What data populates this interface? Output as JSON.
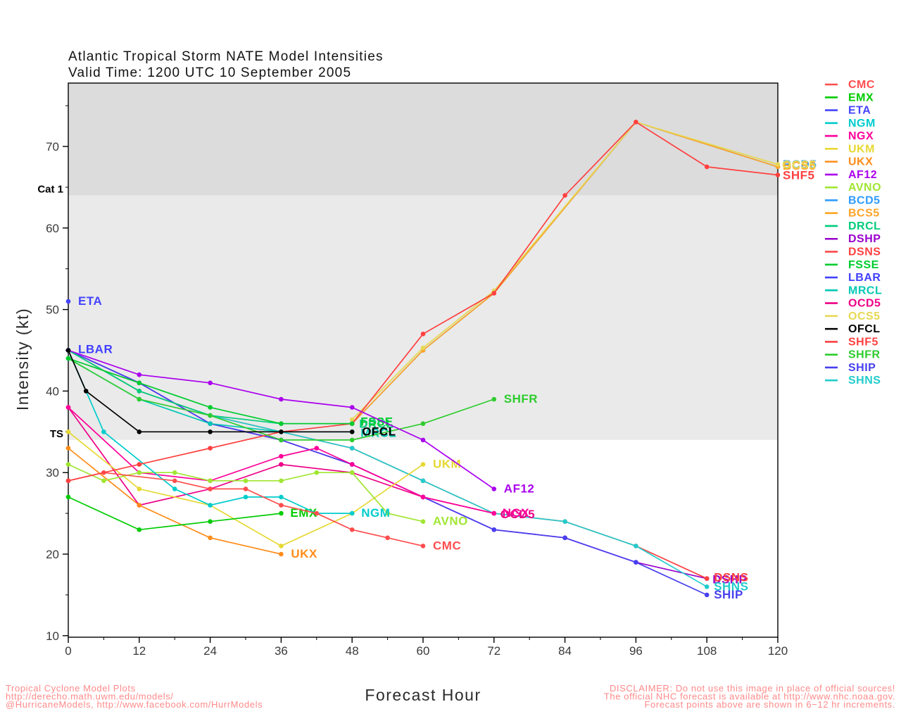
{
  "title": {
    "line1": "Atlantic Tropical Storm NATE Model Intensities",
    "line2": "Valid Time: 1200 UTC 10 September 2005"
  },
  "axes": {
    "x": {
      "label": "Forecast Hour",
      "min": 0,
      "max": 120,
      "ticks": [
        0,
        12,
        24,
        36,
        48,
        60,
        72,
        84,
        96,
        108,
        120
      ]
    },
    "y": {
      "label": "Intensity (kt)",
      "min": 10,
      "max": 78,
      "ticks": [
        10,
        20,
        30,
        40,
        50,
        60,
        70
      ]
    }
  },
  "thresholds": [
    {
      "label": "Cat 1",
      "value": 64
    },
    {
      "label": "TS",
      "value": 34
    }
  ],
  "band_colors": {
    "hurricane": "#dcdcdc",
    "tropical_storm": "#eaeaea",
    "below": "#ffffff"
  },
  "footer": {
    "left": [
      "Tropical Cyclone Model Plots",
      "http://derecho.math.uwm.edu/models/",
      "@HurricaneModels, http://www.facebook.com/HurrModels"
    ],
    "right": [
      "DISCLAIMER: Do not use this image in place of official sources!",
      "The official NHC forecast is available at http://www.nhc.noaa.gov.",
      "Forecast points above are shown in 6−12 hr increments."
    ],
    "color": "#ff8a8a"
  },
  "legend": [
    {
      "name": "CMC",
      "color": "#ff4d4d"
    },
    {
      "name": "EMX",
      "color": "#00cc00"
    },
    {
      "name": "ETA",
      "color": "#4444ff"
    },
    {
      "name": "NGM",
      "color": "#00cccc"
    },
    {
      "name": "NGX",
      "color": "#ff0099"
    },
    {
      "name": "UKM",
      "color": "#e6d832"
    },
    {
      "name": "UKX",
      "color": "#ff8c19"
    },
    {
      "name": "AF12",
      "color": "#aa00ee"
    },
    {
      "name": "AVNO",
      "color": "#a0e632"
    },
    {
      "name": "BCD5",
      "color": "#2e9bff"
    },
    {
      "name": "BCS5",
      "color": "#ffa426"
    },
    {
      "name": "DRCL",
      "color": "#00cc7a"
    },
    {
      "name": "DSHP",
      "color": "#9900cc"
    },
    {
      "name": "DSNS",
      "color": "#ff4040"
    },
    {
      "name": "FSSE",
      "color": "#00cc2e"
    },
    {
      "name": "LBAR",
      "color": "#4040ff"
    },
    {
      "name": "MRCL",
      "color": "#00c8b4"
    },
    {
      "name": "OCD5",
      "color": "#ee0088"
    },
    {
      "name": "OCS5",
      "color": "#e6d855"
    },
    {
      "name": "OFCL",
      "color": "#000000"
    },
    {
      "name": "SHF5",
      "color": "#ff4040"
    },
    {
      "name": "SHFR",
      "color": "#2ecc2e"
    },
    {
      "name": "SHIP",
      "color": "#4740ee"
    },
    {
      "name": "SHNS",
      "color": "#22cccc"
    }
  ],
  "chart_data": {
    "type": "line",
    "title": "Atlantic Tropical Storm NATE Model Intensities",
    "xlabel": "Forecast Hour",
    "ylabel": "Intensity (kt)",
    "xlim": [
      0,
      120
    ],
    "ylim": [
      10,
      78
    ],
    "grid": false,
    "legend_position": "right",
    "series": [
      {
        "name": "ETA",
        "color": "#4444ff",
        "label_dx": 14,
        "label_dy": 5,
        "points": [
          [
            0,
            51
          ]
        ]
      },
      {
        "name": "LBAR",
        "color": "#4040ff",
        "label_dx": 14,
        "label_dy": 4,
        "points": [
          [
            0,
            45
          ]
        ]
      },
      {
        "name": "BCD5",
        "color": "#2e9bff",
        "label_dx": 7,
        "label_dy": 2,
        "points": [
          [
            48,
            36
          ],
          [
            60,
            45
          ],
          [
            72,
            52
          ],
          [
            96,
            73
          ],
          [
            120,
            67.5
          ]
        ]
      },
      {
        "name": "BCS5",
        "color": "#ffa426",
        "label_dx": 7,
        "label_dy": 4,
        "points": [
          [
            48,
            36
          ],
          [
            60,
            45
          ],
          [
            72,
            52
          ],
          [
            96,
            73
          ],
          [
            120,
            67.5
          ]
        ]
      },
      {
        "name": "OCS5",
        "color": "#e6d855",
        "label_dx": 6,
        "label_dy": 6,
        "points": [
          [
            48,
            36.5
          ],
          [
            60,
            45.3
          ],
          [
            72,
            52.3
          ],
          [
            96,
            73
          ],
          [
            120,
            67.8
          ]
        ]
      },
      {
        "name": "DSHP",
        "color": "#9900cc",
        "label_dx": 8,
        "label_dy": 7,
        "points": [
          [
            0,
            45
          ],
          [
            12,
            41
          ],
          [
            24,
            36
          ],
          [
            36,
            34
          ],
          [
            48,
            31
          ],
          [
            60,
            27
          ],
          [
            72,
            23
          ],
          [
            84,
            22
          ],
          [
            96,
            19
          ],
          [
            108,
            17
          ]
        ]
      },
      {
        "name": "SHIP",
        "color": "#4740ee",
        "label_dx": 10,
        "label_dy": 5,
        "points": [
          [
            0,
            45
          ],
          [
            12,
            41
          ],
          [
            24,
            36
          ],
          [
            36,
            34
          ],
          [
            48,
            31
          ],
          [
            60,
            27
          ],
          [
            72,
            23
          ],
          [
            84,
            22
          ],
          [
            96,
            19
          ],
          [
            108,
            15
          ]
        ]
      },
      {
        "name": "DSNS",
        "color": "#ff4040",
        "label_dx": 10,
        "label_dy": 4,
        "points": [
          [
            0,
            45
          ],
          [
            12,
            40
          ],
          [
            24,
            37
          ],
          [
            36,
            35
          ],
          [
            48,
            33
          ],
          [
            60,
            29
          ],
          [
            72,
            25
          ],
          [
            84,
            24
          ],
          [
            96,
            21
          ],
          [
            108,
            17
          ]
        ]
      },
      {
        "name": "SHNS",
        "color": "#22cccc",
        "label_dx": 10,
        "label_dy": 5,
        "points": [
          [
            0,
            45
          ],
          [
            12,
            40
          ],
          [
            24,
            37
          ],
          [
            36,
            35
          ],
          [
            48,
            33
          ],
          [
            60,
            29
          ],
          [
            72,
            25
          ],
          [
            84,
            24
          ],
          [
            96,
            21
          ],
          [
            108,
            16
          ]
        ]
      },
      {
        "name": "MRCL",
        "color": "#00c8b4",
        "label_dx": 12,
        "label_dy": 7,
        "points": [
          [
            0,
            44
          ],
          [
            12,
            39
          ],
          [
            24,
            36
          ],
          [
            36,
            35
          ],
          [
            48,
            35
          ]
        ]
      },
      {
        "name": "DRCL",
        "color": "#00cc7a",
        "label_dx": 10,
        "label_dy": 6,
        "points": [
          [
            0,
            45
          ],
          [
            12,
            40
          ],
          [
            24,
            37
          ],
          [
            36,
            36
          ],
          [
            48,
            36
          ]
        ]
      },
      {
        "name": "OCD5",
        "color": "#ee0088",
        "label_dx": 9,
        "label_dy": 7,
        "points": [
          [
            0,
            38
          ],
          [
            12,
            26
          ],
          [
            24,
            28
          ],
          [
            36,
            31
          ],
          [
            48,
            30
          ],
          [
            60,
            27
          ],
          [
            72,
            25
          ]
        ]
      },
      {
        "name": "NGX",
        "color": "#ff0099",
        "label_dx": 12,
        "label_dy": 5,
        "points": [
          [
            0,
            38
          ],
          [
            12,
            30
          ],
          [
            24,
            29
          ],
          [
            36,
            32
          ],
          [
            42,
            33
          ],
          [
            48,
            31
          ],
          [
            60,
            27
          ],
          [
            72,
            25
          ]
        ]
      },
      {
        "name": "UKX",
        "color": "#ff8c19",
        "label_dx": 14,
        "label_dy": 5,
        "points": [
          [
            0,
            33
          ],
          [
            12,
            26
          ],
          [
            24,
            22
          ],
          [
            36,
            20
          ]
        ]
      },
      {
        "name": "UKM",
        "color": "#e6d832",
        "label_dx": 14,
        "label_dy": 5,
        "points": [
          [
            0,
            35
          ],
          [
            12,
            28
          ],
          [
            24,
            26
          ],
          [
            36,
            21
          ],
          [
            48,
            25
          ],
          [
            60,
            31
          ]
        ]
      },
      {
        "name": "AVNO",
        "color": "#a0e632",
        "label_dx": 14,
        "label_dy": 5,
        "points": [
          [
            0,
            31
          ],
          [
            6,
            29
          ],
          [
            12,
            30
          ],
          [
            18,
            30
          ],
          [
            24,
            29
          ],
          [
            30,
            29
          ],
          [
            36,
            29
          ],
          [
            42,
            30
          ],
          [
            48,
            30
          ],
          [
            54,
            25
          ],
          [
            60,
            24
          ]
        ]
      },
      {
        "name": "EMX",
        "color": "#00cc00",
        "label_dx": 13,
        "label_dy": 5,
        "points": [
          [
            0,
            27
          ],
          [
            12,
            23
          ],
          [
            24,
            24
          ],
          [
            36,
            25
          ]
        ]
      },
      {
        "name": "NGM",
        "color": "#00cccc",
        "label_dx": 13,
        "label_dy": 5,
        "points": [
          [
            0,
            45
          ],
          [
            6,
            35
          ],
          [
            18,
            28
          ],
          [
            24,
            26
          ],
          [
            30,
            27
          ],
          [
            36,
            27
          ],
          [
            42,
            25
          ],
          [
            48,
            25
          ]
        ]
      },
      {
        "name": "CMC",
        "color": "#ff4d4d",
        "label_dx": 14,
        "label_dy": 5,
        "points": [
          [
            0,
            29
          ],
          [
            6,
            30
          ],
          [
            18,
            29
          ],
          [
            24,
            28
          ],
          [
            30,
            28
          ],
          [
            36,
            26
          ],
          [
            42,
            25
          ],
          [
            48,
            23
          ],
          [
            54,
            22
          ],
          [
            60,
            21
          ]
        ]
      },
      {
        "name": "SHF5",
        "color": "#ff4040",
        "label_dx": 7,
        "label_dy": 6,
        "points": [
          [
            0,
            29
          ],
          [
            12,
            31
          ],
          [
            24,
            33
          ],
          [
            36,
            35
          ],
          [
            48,
            36
          ],
          [
            60,
            47
          ],
          [
            72,
            52
          ],
          [
            84,
            64
          ],
          [
            96,
            73
          ],
          [
            108,
            67.5
          ],
          [
            120,
            66.5
          ]
        ]
      },
      {
        "name": "SHFR",
        "color": "#2ecc2e",
        "label_dx": 14,
        "label_dy": 5,
        "points": [
          [
            0,
            44
          ],
          [
            12,
            39
          ],
          [
            24,
            37
          ],
          [
            36,
            34
          ],
          [
            48,
            34
          ],
          [
            60,
            36
          ],
          [
            72,
            39
          ]
        ]
      },
      {
        "name": "FSSE",
        "color": "#00cc2e",
        "label_dx": 12,
        "label_dy": 3,
        "points": [
          [
            0,
            44
          ],
          [
            12,
            41
          ],
          [
            24,
            38
          ],
          [
            36,
            36
          ],
          [
            48,
            36
          ]
        ]
      },
      {
        "name": "AF12",
        "color": "#aa00ee",
        "label_dx": 14,
        "label_dy": 5,
        "points": [
          [
            0,
            45
          ],
          [
            12,
            42
          ],
          [
            24,
            41
          ],
          [
            36,
            39
          ],
          [
            48,
            38
          ],
          [
            60,
            34
          ],
          [
            72,
            28
          ]
        ]
      },
      {
        "name": "OFCL",
        "color": "#000000",
        "label_dx": 14,
        "label_dy": 5,
        "points": [
          [
            0,
            45
          ],
          [
            3,
            40
          ],
          [
            12,
            35
          ],
          [
            24,
            35
          ],
          [
            36,
            35
          ],
          [
            48,
            35
          ]
        ]
      }
    ]
  }
}
